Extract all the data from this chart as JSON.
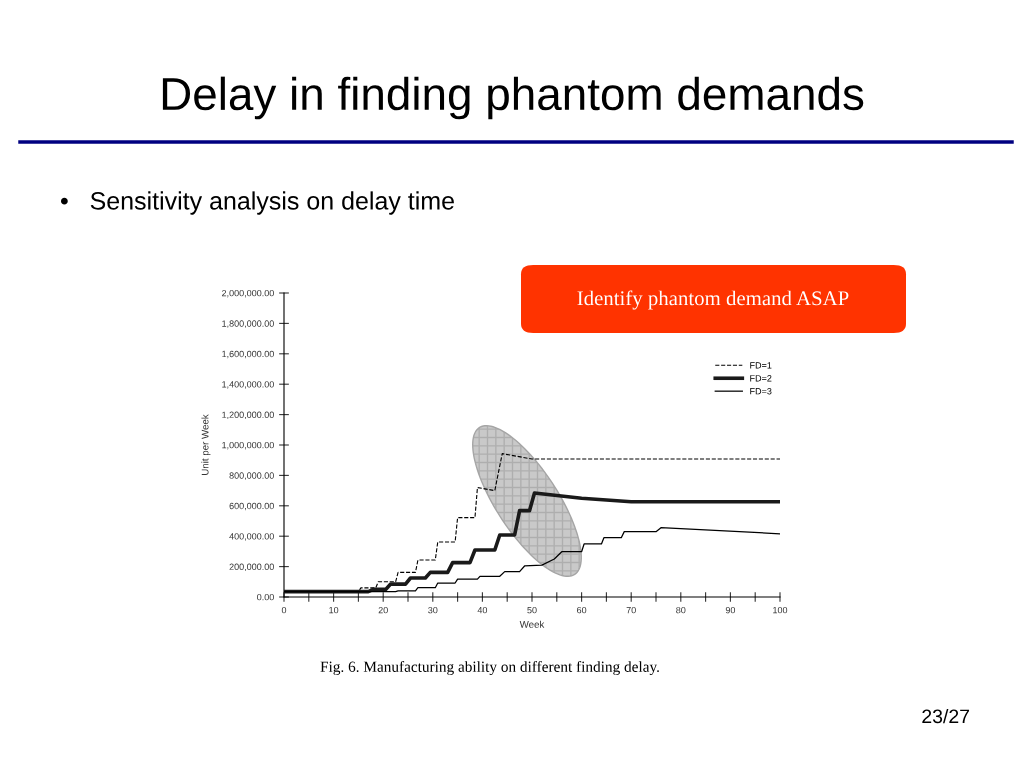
{
  "chart_data": {
    "type": "line",
    "title": "Delay in finding phantom demands",
    "subtitle": "•   Sensitivity analysis on delay time",
    "xlabel": "Week",
    "ylabel": "Unit per Week",
    "annotations": [
      "Identify phantom demand ASAP",
      "Fig. 6. Manufacturing ability on different finding delay.",
      "23/27"
    ],
    "xlim": [
      0,
      100
    ],
    "ylim": [
      0,
      2000000
    ],
    "xticks": [
      0,
      {
        "value": 5,
        "label": null
      },
      10,
      {
        "value": 15,
        "label": null
      },
      20,
      {
        "value": 25,
        "label": null
      },
      30,
      {
        "value": 35,
        "label": null
      },
      40,
      {
        "value": 45,
        "label": null
      },
      50,
      {
        "value": 55,
        "label": null
      },
      60,
      {
        "value": 65,
        "label": null
      },
      70,
      {
        "value": 75,
        "label": null
      },
      80,
      {
        "value": 85,
        "label": null
      },
      90,
      {
        "value": 95,
        "label": null
      },
      100
    ],
    "yticks": [
      {
        "value": 0,
        "label": "0.00"
      },
      {
        "value": 200000,
        "label": "200,000.00"
      },
      {
        "value": 400000,
        "label": "400,000.00"
      },
      {
        "value": 600000,
        "label": "600,000.00"
      },
      {
        "value": 800000,
        "label": "800,000.00"
      },
      {
        "value": 1000000,
        "label": "1,000,000.00"
      },
      {
        "value": 1200000,
        "label": "1,200,000.00"
      },
      {
        "value": 1400000,
        "label": "1,400,000.00"
      },
      {
        "value": 1600000,
        "label": "1,600,000.00"
      },
      {
        "value": 1800000,
        "label": "1,800,000.00"
      },
      {
        "value": 2000000,
        "label": "2,000,000.00"
      }
    ],
    "grid": false,
    "legend": "top right",
    "marker": "none",
    "series": [
      {
        "name": "FD=1",
        "color": "#000000",
        "line_style": "dashed",
        "x": [
          0,
          15,
          15.5,
          18.5,
          19,
          22.5,
          23,
          26.5,
          27,
          30.5,
          31,
          34.5,
          35,
          38.5,
          39,
          42.5,
          44,
          50,
          100
        ],
        "values": [
          35000,
          35000,
          60000,
          60000,
          100000,
          100000,
          162000,
          162000,
          243000,
          243000,
          362000,
          362000,
          522000,
          522000,
          720000,
          700000,
          943000,
          908000,
          908000
        ]
      },
      {
        "name": "FD=2",
        "color": "#1a1a1a",
        "line_style": "solid",
        "x": [
          0,
          17,
          18,
          20.5,
          21.5,
          24.5,
          25.5,
          28.5,
          29.5,
          33,
          34,
          37.5,
          38.5,
          42.5,
          43.5,
          46.5,
          47.5,
          49.5,
          50.5,
          60,
          70,
          100
        ],
        "values": [
          35000,
          35000,
          50000,
          50000,
          85000,
          85000,
          125000,
          125000,
          162000,
          162000,
          226000,
          226000,
          309000,
          309000,
          408000,
          408000,
          568000,
          568000,
          684000,
          650000,
          627000,
          627000
        ]
      },
      {
        "name": "FD=3",
        "color": "#000000",
        "line_style": "solid",
        "x": [
          0,
          22.5,
          23,
          26.5,
          27,
          30.5,
          31,
          34.5,
          35,
          39,
          39.5,
          43.5,
          44.5,
          47.5,
          48.5,
          52,
          54.5,
          56,
          60,
          60.5,
          64,
          64.5,
          68,
          68.6,
          75,
          76,
          100
        ],
        "values": [
          35000,
          35000,
          40000,
          40000,
          61000,
          61000,
          92000,
          92000,
          118000,
          118000,
          136000,
          136000,
          167000,
          167000,
          204000,
          210000,
          250000,
          298000,
          298000,
          349000,
          349000,
          390000,
          390000,
          430000,
          430000,
          456000,
          416000
        ]
      }
    ]
  }
}
